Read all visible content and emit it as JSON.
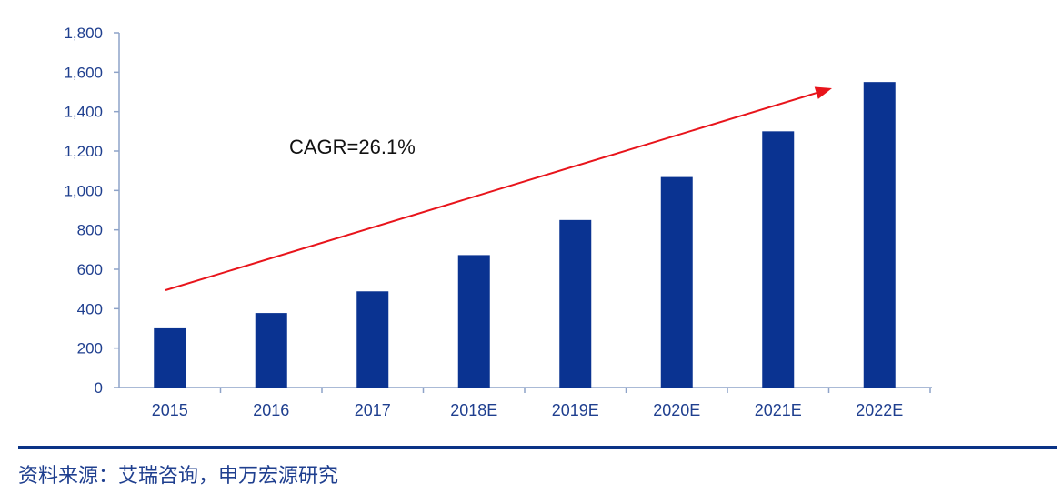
{
  "chart_data": {
    "type": "bar",
    "categories": [
      "2015",
      "2016",
      "2017",
      "2018E",
      "2019E",
      "2020E",
      "2021E",
      "2022E"
    ],
    "values": [
      305,
      378,
      488,
      672,
      850,
      1068,
      1300,
      1550
    ],
    "ylim": [
      0,
      1800
    ],
    "yticks": [
      "0",
      "200",
      "400",
      "600",
      "800",
      "1,000",
      "1,200",
      "1,400",
      "1,600",
      "1,800"
    ],
    "annotation": "CAGR=26.1%",
    "grid": false,
    "colors": {
      "bar": "#0a3391",
      "axis_text": "#1f3f8f",
      "arrow": "#e8141b"
    }
  },
  "footer": {
    "source": "资料来源：艾瑞咨询，申万宏源研究"
  }
}
